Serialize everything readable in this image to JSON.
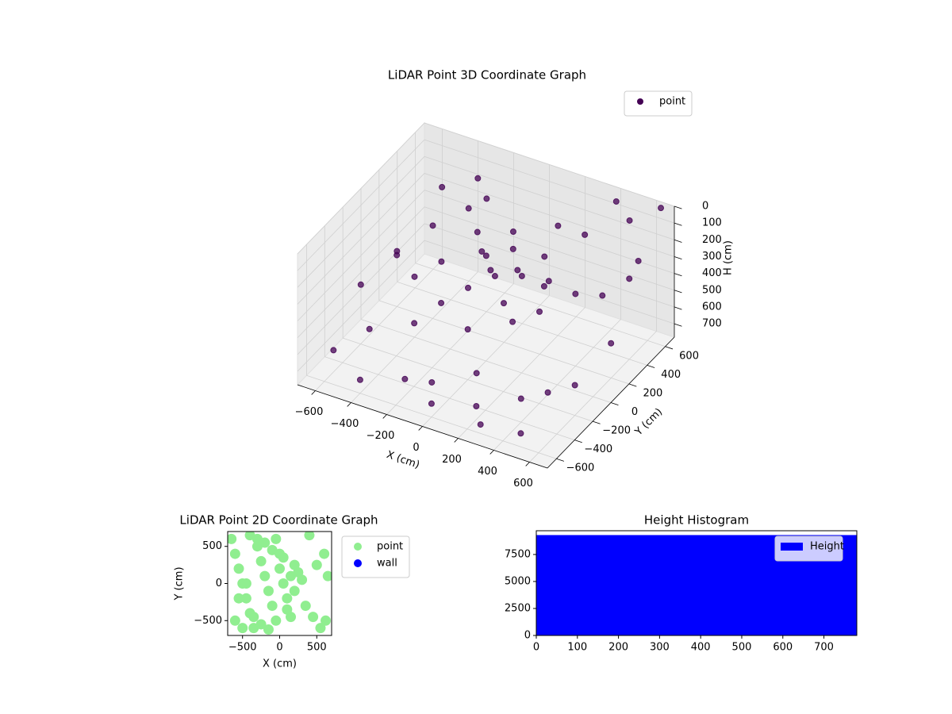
{
  "chart_data": [
    {
      "type": "scatter3d",
      "title": "LiDAR Point 3D Coordinate Graph",
      "xlabel": "X (cm)",
      "ylabel": "Y (cm)",
      "zlabel": "H (cm)",
      "xlim": [
        -700,
        700
      ],
      "ylim": [
        -700,
        700
      ],
      "zlim": [
        780,
        0
      ],
      "xticks": [
        {
          "value": -600,
          "label": "−600"
        },
        {
          "value": -400,
          "label": "−400"
        },
        {
          "value": -200,
          "label": "−200"
        },
        0,
        200,
        400,
        600
      ],
      "yticks": [
        {
          "value": -600,
          "label": "−600"
        },
        {
          "value": -400,
          "label": "−400"
        },
        {
          "value": -200,
          "label": "−200"
        },
        0,
        200,
        400,
        600
      ],
      "zticks": [
        0,
        100,
        200,
        300,
        400,
        500,
        600,
        700
      ],
      "grid": true,
      "legend": "upper right",
      "series": [
        {
          "name": "point",
          "color": "#440154",
          "x": [
            -600,
            -500,
            -400,
            -300,
            -200,
            -100,
            0,
            100,
            200,
            300,
            400,
            500,
            600,
            650,
            600,
            500,
            400,
            300,
            200,
            100,
            0,
            -100,
            -200,
            -300,
            -150,
            -50,
            50,
            150,
            -250,
            -350,
            -450,
            -550,
            -650,
            -600,
            -400,
            -200,
            0,
            200,
            300,
            400,
            500,
            600,
            100,
            -100,
            0,
            -300,
            250,
            -50,
            150,
            650,
            550,
            -500
          ],
          "y": [
            -500,
            -300,
            -600,
            -200,
            -500,
            -400,
            -600,
            -300,
            -500,
            -650,
            -400,
            -600,
            -200,
            100,
            400,
            600,
            650,
            500,
            300,
            200,
            100,
            200,
            300,
            400,
            250,
            150,
            250,
            350,
            500,
            600,
            300,
            100,
            -100,
            200,
            0,
            -100,
            -200,
            -100,
            0,
            200,
            300,
            500,
            0,
            0,
            300,
            100,
            150,
            400,
            500,
            650,
            -400,
            500
          ],
          "z": [
            650,
            600,
            700,
            550,
            680,
            720,
            700,
            650,
            700,
            690,
            640,
            700,
            600,
            500,
            300,
            100,
            50,
            200,
            400,
            350,
            330,
            300,
            250,
            200,
            320,
            340,
            360,
            300,
            180,
            150,
            300,
            400,
            500,
            450,
            420,
            450,
            480,
            420,
            380,
            350,
            380,
            250,
            400,
            380,
            280,
            350,
            330,
            250,
            200,
            0,
            550,
            200
          ]
        }
      ]
    },
    {
      "type": "scatter",
      "title": "LiDAR Point 2D Coordinate Graph",
      "xlabel": "X (cm)",
      "ylabel": "Y (cm)",
      "xlim": [
        -700,
        700
      ],
      "ylim": [
        -700,
        700
      ],
      "xticks": [
        {
          "value": -500,
          "label": "−500"
        },
        0,
        500
      ],
      "yticks": [
        {
          "value": -500,
          "label": "−500"
        },
        0,
        500
      ],
      "legend": "outside",
      "series": [
        {
          "name": "point",
          "color": "#90ee90",
          "x": [
            -650,
            -600,
            -550,
            -500,
            -450,
            -400,
            -350,
            -300,
            -250,
            -200,
            -150,
            -100,
            -50,
            0,
            50,
            100,
            150,
            200,
            250,
            300,
            -600,
            -500,
            -400,
            -300,
            -200,
            -100,
            0,
            100,
            200,
            -550,
            -450,
            -350,
            -250,
            -150,
            -50,
            50,
            150,
            400,
            500,
            600,
            650,
            450,
            550,
            350,
            620
          ],
          "y": [
            600,
            400,
            200,
            0,
            -200,
            -400,
            -600,
            500,
            300,
            100,
            -100,
            -300,
            -500,
            200,
            0,
            -200,
            100,
            -100,
            150,
            50,
            -500,
            -600,
            650,
            600,
            550,
            450,
            400,
            -350,
            250,
            -200,
            0,
            -450,
            -550,
            -620,
            600,
            350,
            -450,
            650,
            250,
            400,
            100,
            -450,
            -600,
            -300,
            -500
          ]
        },
        {
          "name": "wall",
          "color": "#0000ff",
          "x": [],
          "y": []
        }
      ]
    },
    {
      "type": "histogram",
      "title": "Height Histogram",
      "bins": [
        0,
        780
      ],
      "values": [
        9300
      ],
      "xlim": [
        0,
        780
      ],
      "ylim": [
        0,
        9700
      ],
      "xticks": [
        0,
        100,
        200,
        300,
        400,
        500,
        600,
        700
      ],
      "yticks": [
        0,
        2500,
        5000,
        7500
      ],
      "legend": "upper right",
      "series_name": "Height",
      "color": "#0000ff"
    }
  ]
}
